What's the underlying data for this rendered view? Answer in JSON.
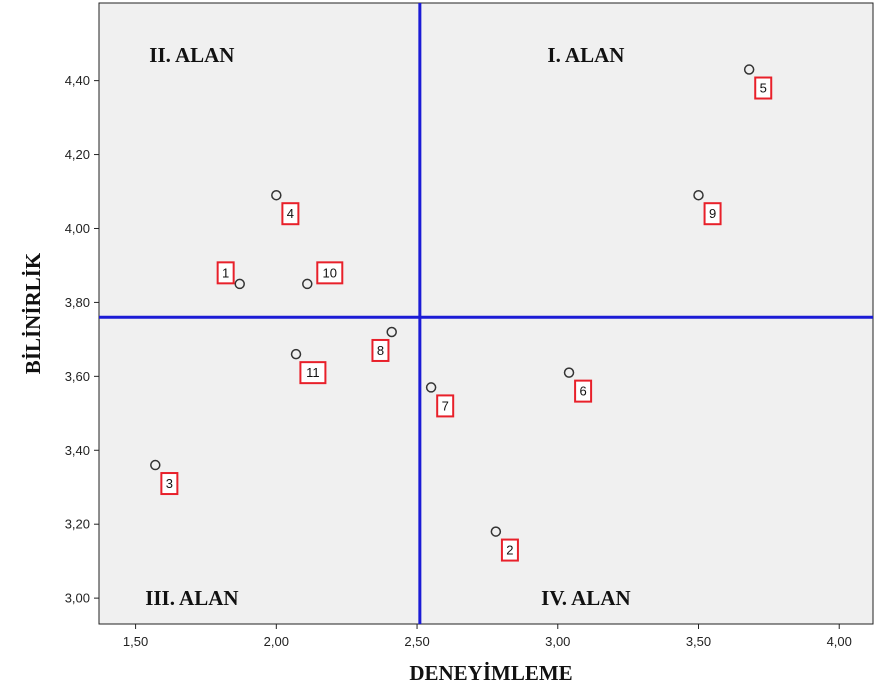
{
  "chart_data": {
    "type": "scatter",
    "xlabel": "DENEYİMLEME",
    "ylabel": "BİLİNİRLİK",
    "xlim": [
      1.37,
      4.12
    ],
    "ylim": [
      2.93,
      4.61
    ],
    "x_ticks": [
      1.5,
      2.0,
      2.5,
      3.0,
      3.5,
      4.0
    ],
    "x_tick_labels": [
      "1,50",
      "2,00",
      "2,50",
      "3,00",
      "3,50",
      "4,00"
    ],
    "y_ticks": [
      3.0,
      3.2,
      3.4,
      3.6,
      3.8,
      4.0,
      4.2,
      4.4
    ],
    "y_tick_labels": [
      "3,00",
      "3,20",
      "3,40",
      "3,60",
      "3,80",
      "4,00",
      "4,20",
      "4,40"
    ],
    "reference_lines": {
      "x": 2.51,
      "y": 3.76,
      "color": "#1b1bd6"
    },
    "quadrant_labels": [
      {
        "text": "II. ALAN",
        "x": 1.7,
        "y": 4.47
      },
      {
        "text": "I. ALAN",
        "x": 3.1,
        "y": 4.47
      },
      {
        "text": "III. ALAN",
        "x": 1.7,
        "y": 3.0
      },
      {
        "text": "IV. ALAN",
        "x": 3.1,
        "y": 3.0
      }
    ],
    "points": [
      {
        "label": "1",
        "x": 1.87,
        "y": 3.85,
        "lx": 1.82,
        "ly": 3.88
      },
      {
        "label": "2",
        "x": 2.78,
        "y": 3.18,
        "lx": 2.83,
        "ly": 3.13
      },
      {
        "label": "3",
        "x": 1.57,
        "y": 3.36,
        "lx": 1.62,
        "ly": 3.31
      },
      {
        "label": "4",
        "x": 2.0,
        "y": 4.09,
        "lx": 2.05,
        "ly": 4.04
      },
      {
        "label": "5",
        "x": 3.68,
        "y": 4.43,
        "lx": 3.73,
        "ly": 4.38
      },
      {
        "label": "6",
        "x": 3.04,
        "y": 3.61,
        "lx": 3.09,
        "ly": 3.56
      },
      {
        "label": "7",
        "x": 2.55,
        "y": 3.57,
        "lx": 2.6,
        "ly": 3.52
      },
      {
        "label": "8",
        "x": 2.41,
        "y": 3.72,
        "lx": 2.37,
        "ly": 3.67
      },
      {
        "label": "9",
        "x": 3.5,
        "y": 4.09,
        "lx": 3.55,
        "ly": 4.04
      },
      {
        "label": "10",
        "x": 2.11,
        "y": 3.85,
        "lx": 2.19,
        "ly": 3.88
      },
      {
        "label": "11",
        "x": 2.07,
        "y": 3.66,
        "lx": 2.13,
        "ly": 3.61
      }
    ],
    "colors": {
      "plot_bg": "#f0f0f0",
      "label_box": "#e8202a",
      "marker": "#333333"
    },
    "grid": false,
    "legend": "none"
  }
}
